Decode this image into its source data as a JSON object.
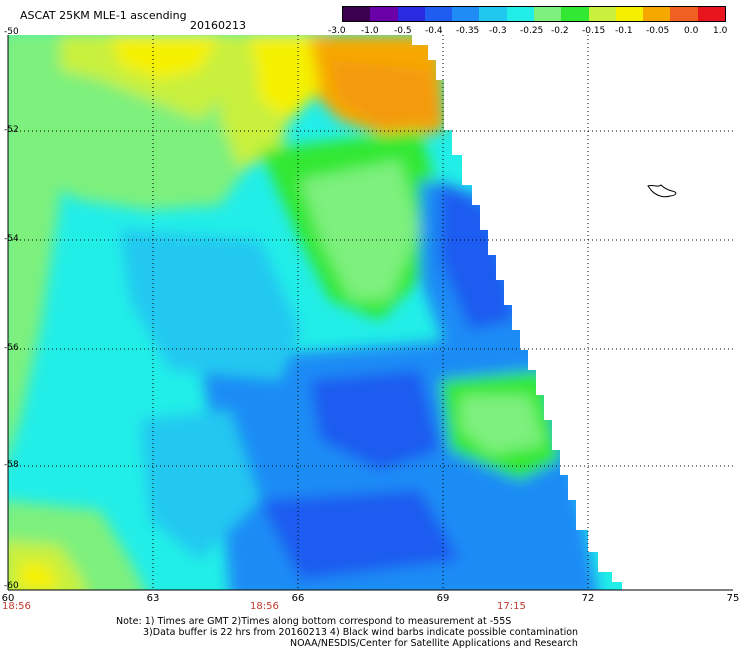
{
  "header": {
    "title": "ASCAT 25KM MLE-1 ascending",
    "date": "20160213"
  },
  "colorbar": {
    "labels": [
      "-3.0",
      "-1.0",
      "-0.5",
      "-0.4",
      "-0.35",
      "-0.3",
      "-0.25",
      "-0.2",
      "-0.15",
      "-0.1",
      "-0.05",
      "0.0",
      "1.0"
    ],
    "colors": [
      "#3b004f",
      "#6a00a8",
      "#2a2ae0",
      "#1f5cf0",
      "#1f8cf5",
      "#20c8f0",
      "#22eee8",
      "#7df07d",
      "#33e833",
      "#c8f03c",
      "#f5f000",
      "#f7a800",
      "#f06020",
      "#e8141e"
    ]
  },
  "map": {
    "lat_labels": [
      "-50",
      "-52",
      "-54",
      "-56",
      "-58",
      "-60"
    ],
    "lon_labels": [
      "60",
      "63",
      "66",
      "69",
      "72",
      "75"
    ],
    "times": [
      "18:56",
      "18:56",
      "17:15"
    ]
  },
  "notes": {
    "line1": "Note: 1) Times are GMT 2)Times along bottom correspond to measurement at -55S",
    "line2": "3)Data buffer is 22 hrs from 20160213 4) Black wind barbs indicate possible contamination",
    "line3": "NOAA/NESDIS/Center for Satellite Applications and Research"
  }
}
